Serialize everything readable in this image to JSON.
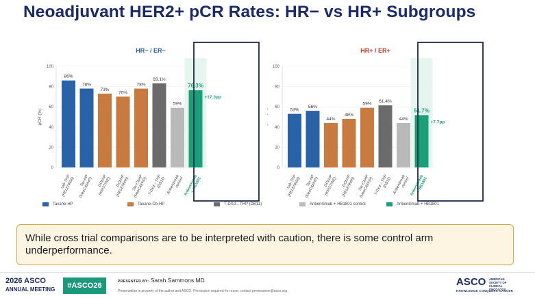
{
  "slide": {
    "title": "Neoadjuvant HER2+ pCR Rates: HR− vs HR+ Subgroups"
  },
  "chart_data": [
    {
      "type": "bar",
      "title": "HR− / ER−",
      "ylabel": "pCR (%)",
      "ylim": [
        0,
        100
      ],
      "yticks": [
        0,
        20,
        40,
        60,
        80,
        100
      ],
      "categories": [
        "nab-THP (HELEN006)",
        "Tax-HP (NeoCARHP)",
        "DCbHP (KRISTINE)",
        "DCbHP (HELEN006)",
        "Tax-CbHP (NeoCARHP)",
        "T-DXd→THP (DB11)",
        "Anbenitimab control",
        "Anbenitimab + HB1801"
      ],
      "values": [
        86,
        78,
        73,
        70,
        78,
        83.1,
        59,
        76.3
      ],
      "value_labels": [
        "86%",
        "78%",
        "73%",
        "70%",
        "78%",
        "83.1%",
        "59%",
        "76.3%"
      ],
      "groups": [
        "Taxane-HP",
        "Taxane-HP",
        "Taxane-Cb-HP",
        "Taxane-Cb-HP",
        "Taxane-Cb-HP",
        "T-DXd→THP (DB11)",
        "Anbenitimab + HB1801 control",
        "Anbenitimab + HB1801"
      ],
      "delta_label": "+17.3pp"
    },
    {
      "type": "bar",
      "title": "HR+ / ER+",
      "ylabel": "pCR (%)",
      "ylim": [
        0,
        100
      ],
      "yticks": [
        0,
        20,
        40,
        60,
        80,
        100
      ],
      "categories": [
        "nab-THP (HELEN006)",
        "Tax-HP (NeoCARHP)",
        "DCbHP (KRISTINE)",
        "DCbHP (HELEN006)",
        "Tax-CbHP (NeoCARHP)",
        "T-DXd→THP (DB11)",
        "Anbenitimab control",
        "Anbenitimab + HB1801"
      ],
      "values": [
        53,
        56,
        44,
        48,
        59,
        61.4,
        44,
        51.7
      ],
      "value_labels": [
        "53%",
        "56%",
        "44%",
        "48%",
        "59%",
        "61.4%",
        "44%",
        "51.7%"
      ],
      "groups": [
        "Taxane-HP",
        "Taxane-HP",
        "Taxane-Cb-HP",
        "Taxane-Cb-HP",
        "Taxane-Cb-HP",
        "T-DXd→THP (DB11)",
        "Anbenitimab + HB1801 control",
        "Anbenitimab + HB1801"
      ],
      "delta_label": "+7.7pp"
    }
  ],
  "legend": [
    {
      "label": "Taxane-HP",
      "color": "#2a62a8"
    },
    {
      "label": "Taxane-Cb-HP",
      "color": "#c87a3f"
    },
    {
      "label": "T-DXd→THP (DB11)",
      "color": "#6b6b6b"
    },
    {
      "label": "Anbenitimab + HB1801 control",
      "color": "#b9b9b9"
    },
    {
      "label": "Anbenitimab + HB1801",
      "color": "#1aa077"
    }
  ],
  "colors": {
    "title_blue": "#1b2a6b",
    "hr_neg_title": "#2a62a8",
    "hr_pos_title": "#c0392b",
    "highlight_green": "#1aa077"
  },
  "callout": {
    "text": "While cross trial comparisons are to be interpreted with caution, there is some control arm underperformance."
  },
  "footer": {
    "meeting_year": "2026 ASCO",
    "meeting_name": "ANNUAL MEETING",
    "hashtag": "#ASCO26",
    "presented_by_label": "PRESENTED BY:",
    "presenter": "Sarah Sammons MD",
    "disclaimer": "Presentation is property of the author and ASCO. Permission required for reuse; contact permissions@asco.org.",
    "asco_logo": "ASCO",
    "asco_society": "AMERICAN SOCIETY OF CLINICAL ONCOLOGY",
    "asco_tagline": "KNOWLEDGE CONQUERS CANCER"
  }
}
